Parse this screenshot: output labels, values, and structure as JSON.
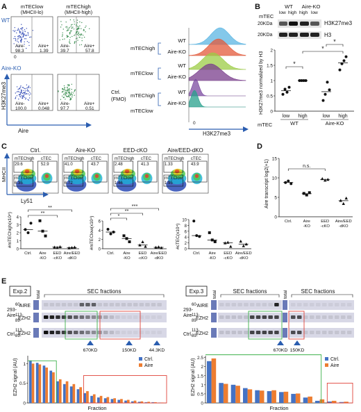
{
  "panel_labels": {
    "A": "A",
    "B": "B",
    "C": "C",
    "D": "D",
    "E": "E"
  },
  "panelA": {
    "row_wt": "WT",
    "row_ko": "Aire-KO",
    "col_low": "mTEClow",
    "col_low_sub": "(MHCII-lo)",
    "col_high": "mTEChigh",
    "col_high_sub": "(MHCII-high)",
    "yaxis": "H3K27me3",
    "xaxis": "Aire",
    "gate_minus": "Aire-",
    "gate_plus": "Aire+",
    "wt_low_minus": "98.3",
    "wt_low_plus": "1.39",
    "wt_high_minus": "39.7",
    "wt_high_plus": "57.8",
    "ko_low_minus": "100.0",
    "ko_low_plus": "0.048",
    "ko_high_minus": "97.7",
    "ko_high_plus": "0.51",
    "zero": "0",
    "hist_rows": [
      "WT",
      "Aire-KO",
      "WT",
      "Aire-KO",
      "WT",
      "Aire-KO"
    ],
    "hist_group_high": "mTEChigh",
    "hist_group_low": "mTEClow",
    "hist_ctrl": "Ctrl.",
    "hist_fmo": "(FMO)",
    "hist_xaxis": "H3K27me3",
    "hist_zero": "0",
    "hist_colors": [
      "#5bb6e3",
      "#e35a3b",
      "#9ccc45",
      "#7a3d8c",
      "#7b4aa0",
      "#27a08c"
    ]
  },
  "panelB": {
    "blot_mtec": "mTEC",
    "blot_wt": "WT",
    "blot_ko": "Aire-KO",
    "blot_lanes": [
      "low",
      "high",
      "high",
      "low"
    ],
    "kda_top": "20KDa",
    "kda_bot": "20KDa",
    "band_top": "H3K27me3",
    "band_bot": "H3",
    "yaxis": "H3K27me3 normalized by H3",
    "y_ticks": [
      "0",
      "0.5",
      "1",
      "1.5",
      "2"
    ],
    "x_mtec": "mTEC",
    "x_labels": [
      "low",
      "high",
      "low",
      "high"
    ],
    "x_groups": [
      "WT",
      "Aire-KO"
    ],
    "star": "*",
    "points": [
      [
        0.55,
        0.72,
        0.62,
        0.78
      ],
      [
        1.0,
        1.0,
        1.0,
        1.0
      ],
      [
        0.35,
        0.55,
        0.95,
        0.7
      ],
      [
        1.35,
        1.55,
        1.65,
        1.78
      ]
    ]
  },
  "panelC": {
    "cols": [
      "Ctrl.",
      "Aire-KO",
      "EED-cKO",
      "Aire/EED-dKO"
    ],
    "gate_high": "mTEChigh",
    "gate_low": "mTEClow",
    "gate_ctec": "cTEC",
    "high_vals": [
      "29.6",
      "41.0",
      "2.48",
      "1.33"
    ],
    "ctec_vals": [
      "52.9",
      "43.7",
      "41.3",
      "43.9"
    ],
    "low_vals": [
      "6.35",
      "6.72",
      "1.46",
      "1.95"
    ],
    "yaxis": "MHCII",
    "xaxis": "Ly51",
    "plot1_y": "#mTEChigh(x10⁴)",
    "plot2_y": "#mTEClow(x10⁴)",
    "plot3_y": "#cTEC(x10⁴)",
    "x_labels": [
      "Ctrl.",
      "Aire-KO",
      "EED-cKO",
      "Aire/EED-dKO"
    ],
    "sig2": "**",
    "sig3": "***",
    "sig1": "*",
    "plot1_points": [
      [
        2.4,
        2.0,
        3.2
      ],
      [
        3.5,
        2.2,
        1.6
      ],
      [
        0.2,
        0.15,
        0.25
      ],
      [
        0.1,
        0.15,
        0.2
      ]
    ],
    "plot2_points": [
      [
        4.2,
        3.2,
        3.6
      ],
      [
        2.8,
        2.2,
        1.5
      ],
      [
        0.8,
        1.5,
        0.5
      ],
      [
        0.3,
        0.4,
        0.2
      ]
    ],
    "plot3_points": [
      [
        9.5,
        4.5,
        4.2
      ],
      [
        5.5,
        3.0,
        2.4
      ],
      [
        2.0,
        2.2,
        0.8
      ],
      [
        2.6,
        1.0,
        1.6
      ]
    ]
  },
  "panelD": {
    "yaxis": "Aire transcript log2(+1)",
    "y_ticks": [
      "0",
      "5",
      "10",
      "15"
    ],
    "x_labels": [
      "Ctrl.",
      "Aire-KO",
      "EED-cKO",
      "Aire/EED-dKO"
    ],
    "ns": "n.s.",
    "points": [
      [
        8.8,
        9.2,
        8.5
      ],
      [
        6.0,
        5.6,
        6.2
      ],
      [
        9.8,
        9.4,
        9.6
      ],
      [
        4.2,
        3.4,
        4.8
      ]
    ]
  },
  "panelE": {
    "exp2": "Exp.2",
    "exp3": "Exp.3",
    "total": "total",
    "sec": "SEC fractions",
    "aire": "AIRE",
    "ezh2": "EZH2",
    "line_293": "293-",
    "line_aire": "Aire",
    "ctrl": "Ctrl.",
    "mw_a": "60-",
    "mw_b": "113-",
    "mw_c": "89-",
    "mw_d": "113-",
    "mw_e": "89-",
    "mw_f": "89-",
    "m670": "670KD",
    "m150": "150KD",
    "m44": "44.3KD",
    "ylabel": "EZH2 signal (AU)",
    "xlabel": "Fraction",
    "legend_ctrl": "Ctrl.",
    "legend_aire": "Aire",
    "color_ctrl": "#4472c4",
    "color_aire": "#ed7d31"
  },
  "chart_data": [
    {
      "type": "bar",
      "title": "",
      "xlabel": "Fraction",
      "ylabel": "EZH2 signal (AU)",
      "ylim": [
        0,
        1.2
      ],
      "y_ticks": [
        0,
        0.5,
        1
      ],
      "series": [
        {
          "name": "Ctrl.",
          "values": [
            1.08,
            1.02,
            0.95,
            0.82,
            0.55,
            0.48,
            0.42,
            0.35,
            0.25,
            0.18,
            0.14,
            0.12,
            0.1,
            0.08,
            0.06,
            0.04,
            0.03,
            0.02,
            0.02,
            0.01
          ]
        },
        {
          "name": "Aire",
          "values": [
            1.0,
            0.98,
            0.9,
            0.78,
            0.6,
            0.55,
            0.48,
            0.4,
            0.3,
            0.22,
            0.18,
            0.15,
            0.12,
            0.1,
            0.08,
            0.06,
            0.04,
            0.03,
            0.02,
            0.01
          ]
        }
      ]
    },
    {
      "type": "bar",
      "title": "",
      "xlabel": "Fraction",
      "ylabel": "EZH2 signal (AU)",
      "ylim": [
        0,
        2.6
      ],
      "y_ticks": [
        0,
        0.5,
        1,
        1.5,
        2,
        2.5
      ],
      "series": [
        {
          "name": "Ctrl.",
          "values": [
            2.3,
            1.1,
            1.0,
            0.82,
            0.7,
            0.65,
            0.6,
            0.5,
            0.3,
            0.12,
            0.08,
            0.05
          ]
        },
        {
          "name": "Aire",
          "values": [
            2.45,
            1.05,
            0.95,
            0.75,
            0.68,
            0.7,
            0.62,
            0.52,
            0.35,
            0.2,
            0.12,
            0.07
          ]
        }
      ]
    }
  ]
}
